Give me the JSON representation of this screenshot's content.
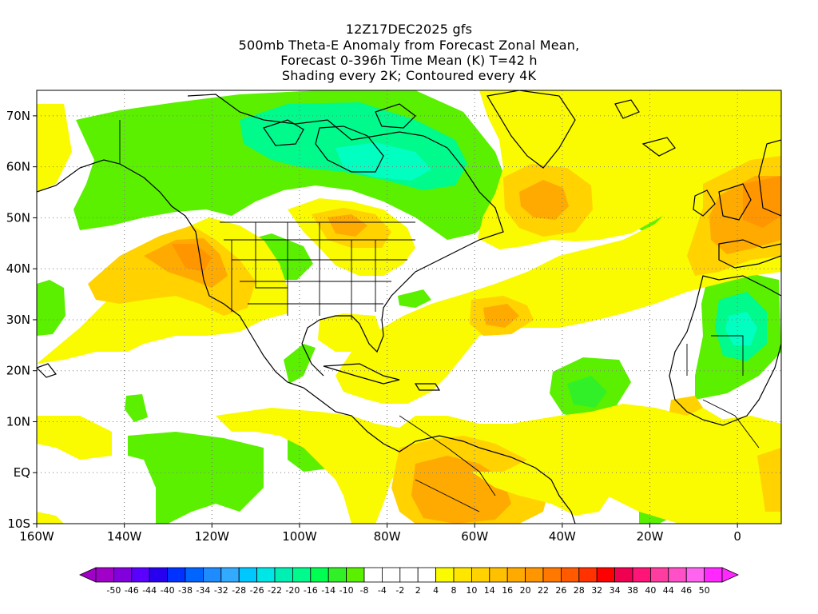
{
  "title": {
    "line1": "12Z17DEC2025 gfs",
    "line2": "500mb Theta-E Anomaly from Forecast Zonal Mean,",
    "line3": "Forecast 0-396h Time Mean (K) T=42 h",
    "line4": "Shading every 2K; Contoured every 4K"
  },
  "map": {
    "lon_range": [
      -160,
      10
    ],
    "lat_range": [
      -10,
      75
    ],
    "lon_ticks": [
      {
        "lon": -160,
        "label": "160W"
      },
      {
        "lon": -140,
        "label": "140W"
      },
      {
        "lon": -120,
        "label": "120W"
      },
      {
        "lon": -100,
        "label": "100W"
      },
      {
        "lon": -80,
        "label": "80W"
      },
      {
        "lon": -60,
        "label": "60W"
      },
      {
        "lon": -40,
        "label": "40W"
      },
      {
        "lon": -20,
        "label": "20W"
      },
      {
        "lon": 0,
        "label": "0"
      }
    ],
    "lat_ticks": [
      {
        "lat": 70,
        "label": "70N"
      },
      {
        "lat": 60,
        "label": "60N"
      },
      {
        "lat": 50,
        "label": "50N"
      },
      {
        "lat": 40,
        "label": "40N"
      },
      {
        "lat": 30,
        "label": "30N"
      },
      {
        "lat": 20,
        "label": "20N"
      },
      {
        "lat": 10,
        "label": "10N"
      },
      {
        "lat": 0,
        "label": "EQ"
      },
      {
        "lat": -10,
        "label": "10S"
      }
    ]
  },
  "colorbar": {
    "colors": [
      "#a000c8",
      "#8200dc",
      "#5a00ff",
      "#2800f0",
      "#0032ff",
      "#0064ff",
      "#1e8cff",
      "#32aaff",
      "#00c8ff",
      "#00e6e6",
      "#00f0b4",
      "#00fa8c",
      "#00ff50",
      "#32f028",
      "#5af000",
      "#ffffff",
      "#ffffff",
      "#ffffff",
      "#ffffff",
      "#fafa00",
      "#ffe600",
      "#ffd200",
      "#ffc000",
      "#ffaa00",
      "#ff9600",
      "#ff7800",
      "#ff5a00",
      "#ff3200",
      "#ff0000",
      "#f00050",
      "#ff1478",
      "#ff3ca0",
      "#ff50c8",
      "#ff64f0",
      "#ff28ff"
    ],
    "labels": [
      "-50",
      "-46",
      "-44",
      "-40",
      "-38",
      "-34",
      "-32",
      "-28",
      "-26",
      "-22",
      "-20",
      "-16",
      "-14",
      "-10",
      "-8",
      "-4",
      "-2",
      "2",
      "4",
      "8",
      "10",
      "14",
      "16",
      "20",
      "22",
      "26",
      "28",
      "32",
      "34",
      "38",
      "40",
      "44",
      "46",
      "50"
    ]
  },
  "colors": {
    "green": "#5af000",
    "light_green": "#32f028",
    "cyan_green": "#00fa8c",
    "yellow": "#fafa00",
    "gold": "#ffd200",
    "orange": "#ffaa00",
    "dark_orange": "#ff9600"
  }
}
